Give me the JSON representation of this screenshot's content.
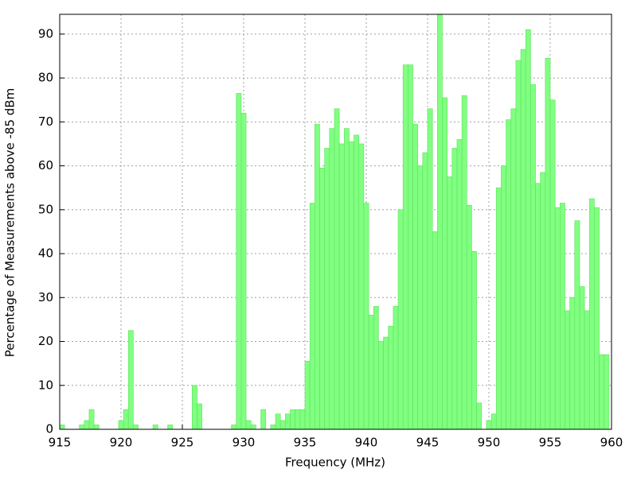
{
  "chart_data": {
    "type": "histogram",
    "xlabel": "Frequency (MHz)",
    "ylabel": "Percentage of Measurements above -85 dBm",
    "bins": [
      915,
      915.4,
      915.8,
      916.2,
      916.6,
      917,
      917.4,
      917.8,
      918.2,
      918.6,
      919,
      919.4,
      919.8,
      920.2,
      920.6,
      921,
      921.4,
      921.8,
      922.2,
      922.6,
      923,
      923.4,
      923.8,
      924.2,
      924.6,
      925,
      925.4,
      925.8,
      926.2,
      926.6,
      927,
      927.4,
      927.8,
      928.2,
      928.6,
      929,
      929.4,
      929.8,
      930.2,
      930.6,
      931,
      931.4,
      931.8,
      932.2,
      932.6,
      933,
      933.4,
      933.8,
      934.2,
      934.6,
      935,
      935.4,
      935.8,
      936.2,
      936.6,
      937,
      937.4,
      937.8,
      938.2,
      938.6,
      939,
      939.4,
      939.8,
      940.2,
      940.6,
      941,
      941.4,
      941.8,
      942.2,
      942.6,
      943,
      943.4,
      943.8,
      944.2,
      944.6,
      945,
      945.4,
      945.8,
      946.2,
      946.6,
      947,
      947.4,
      947.8,
      948.2,
      948.6,
      949,
      949.4,
      949.8,
      950.2,
      950.6,
      951,
      951.4,
      951.8,
      952.2,
      952.6,
      953,
      953.4,
      953.8,
      954.2,
      954.6,
      955,
      955.4,
      955.8,
      956.2,
      956.6,
      957,
      957.4,
      957.8,
      958.2,
      958.6,
      959,
      959.4,
      959.8
    ],
    "values": [
      1,
      0,
      0,
      0,
      1,
      2,
      4.5,
      1,
      0,
      0,
      0,
      0,
      2,
      4.5,
      22.5,
      1,
      0,
      0,
      0,
      1,
      0,
      0,
      1,
      0,
      0,
      0,
      0,
      10,
      5.8,
      0,
      0,
      0,
      0,
      0,
      0,
      1,
      76.5,
      72,
      2,
      1,
      0,
      4.5,
      0,
      1,
      3.5,
      2,
      3.5,
      4.5,
      4.5,
      4.5,
      15.5,
      51.5,
      69.5,
      59.5,
      64,
      68.5,
      73,
      65,
      68.5,
      65.5,
      67,
      65,
      51.5,
      26,
      28,
      20,
      21,
      23.5,
      28,
      50,
      83,
      83,
      69.5,
      60,
      63,
      73,
      45,
      94.5,
      75.5,
      57.5,
      64,
      66,
      76,
      51,
      40.5,
      6,
      0,
      2,
      3.5,
      55,
      60,
      70.5,
      73,
      84,
      86.5,
      91,
      78.5,
      56,
      58.5,
      84.5,
      75,
      50.5,
      51.5,
      27,
      30,
      47.5,
      32.5,
      27,
      52.5,
      50.5,
      17,
      17
    ],
    "color": "#80ff80",
    "xlim": [
      915,
      960
    ],
    "xticks": [
      915,
      920,
      925,
      930,
      935,
      940,
      945,
      950,
      955,
      960
    ],
    "ylim": [
      0,
      94.5
    ],
    "yticks": [
      0,
      10,
      20,
      30,
      40,
      50,
      60,
      70,
      80,
      90
    ],
    "grid": true
  }
}
